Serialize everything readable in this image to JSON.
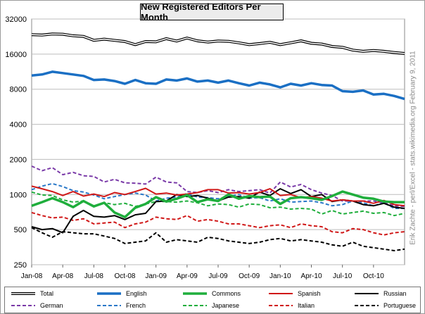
{
  "title": "New Registered Editors Per Month",
  "credit": "Erik Zachte - perl/Excel  -  stats.wikimedia.org        February 9, 2011",
  "chart_data": {
    "type": "line",
    "title": "New Registered Editors Per Month",
    "y_scale": "log",
    "ylim": [
      250,
      32000
    ],
    "y_ticks": [
      250,
      500,
      1000,
      2000,
      4000,
      8000,
      16000,
      32000
    ],
    "x_tick_labels": [
      "Jan-08",
      "Apr-08",
      "Jul-08",
      "Oct-08",
      "Jan-09",
      "Apr-09",
      "Jul-09",
      "Oct-09",
      "Jan-10",
      "Apr-10",
      "Jul-10",
      "Oct-10"
    ],
    "months": 37,
    "grid": "horizontal",
    "legend_position": "bottom",
    "series": [
      {
        "name": "Total",
        "color": "#000000",
        "style": "double",
        "values": [
          23500,
          23300,
          23800,
          23700,
          23000,
          22700,
          21000,
          21500,
          21000,
          20500,
          19300,
          20500,
          20400,
          21700,
          20700,
          22000,
          20800,
          20300,
          20700,
          20600,
          20000,
          19300,
          19700,
          20200,
          19300,
          20000,
          20800,
          19800,
          19500,
          18600,
          18300,
          17300,
          16900,
          17200,
          16900,
          16500,
          16200
        ]
      },
      {
        "name": "English",
        "color": "#1a6fc4",
        "style": "solid-thick",
        "values": [
          10500,
          10700,
          11300,
          11000,
          10700,
          10400,
          9600,
          9700,
          9400,
          8900,
          9600,
          9000,
          8900,
          9700,
          9500,
          9900,
          9300,
          9500,
          9100,
          9500,
          9000,
          8600,
          9100,
          8800,
          8300,
          8900,
          8600,
          9000,
          8700,
          8600,
          7700,
          7600,
          7800,
          7200,
          7300,
          7000,
          6600
        ]
      },
      {
        "name": "Commons",
        "color": "#1fae3c",
        "style": "solid-thick",
        "values": [
          800,
          860,
          930,
          860,
          780,
          880,
          790,
          850,
          700,
          640,
          770,
          830,
          950,
          870,
          920,
          990,
          860,
          910,
          880,
          1000,
          920,
          970,
          950,
          960,
          830,
          930,
          950,
          930,
          900,
          970,
          1060,
          1000,
          940,
          920,
          870,
          860,
          860
        ]
      },
      {
        "name": "Spanish",
        "color": "#d01818",
        "style": "solid",
        "values": [
          1180,
          1120,
          1060,
          980,
          1060,
          970,
          1010,
          960,
          1040,
          1000,
          1060,
          1130,
          1010,
          1030,
          990,
          1010,
          1040,
          1100,
          1100,
          1030,
          1040,
          1010,
          1040,
          1120,
          980,
          1000,
          940,
          960,
          930,
          880,
          900,
          880,
          880,
          840,
          890,
          820,
          800
        ]
      },
      {
        "name": "Russian",
        "color": "#000000",
        "style": "solid",
        "values": [
          530,
          500,
          510,
          470,
          650,
          730,
          650,
          640,
          660,
          610,
          670,
          690,
          870,
          880,
          1000,
          960,
          980,
          930,
          880,
          950,
          960,
          930,
          1050,
          980,
          1120,
          1020,
          1100,
          960,
          1000,
          870,
          900,
          880,
          820,
          800,
          840,
          780,
          760
        ]
      },
      {
        "name": "German",
        "color": "#7a3aa8",
        "style": "dashed",
        "values": [
          1750,
          1600,
          1700,
          1480,
          1550,
          1450,
          1430,
          1280,
          1350,
          1260,
          1250,
          1230,
          1410,
          1280,
          1260,
          1060,
          1040,
          1080,
          1040,
          1100,
          1060,
          1080,
          1100,
          1030,
          1280,
          1160,
          1220,
          1100,
          1030,
          980,
          880,
          880,
          880,
          880,
          850,
          800,
          790
        ]
      },
      {
        "name": "French",
        "color": "#2a78c8",
        "style": "dashed",
        "values": [
          1100,
          1180,
          1240,
          1170,
          1080,
          1050,
          990,
          920,
          960,
          1000,
          1030,
          990,
          880,
          930,
          950,
          1020,
          950,
          940,
          920,
          960,
          1000,
          930,
          940,
          880,
          920,
          860,
          870,
          880,
          850,
          800,
          820,
          880,
          850,
          800,
          850,
          760,
          760
        ]
      },
      {
        "name": "Japanese",
        "color": "#1fae3c",
        "style": "dashed",
        "values": [
          1050,
          990,
          980,
          900,
          860,
          880,
          800,
          850,
          820,
          840,
          790,
          830,
          870,
          870,
          860,
          880,
          850,
          800,
          830,
          820,
          780,
          830,
          820,
          770,
          780,
          750,
          760,
          750,
          680,
          730,
          680,
          700,
          720,
          690,
          700,
          660,
          690
        ]
      },
      {
        "name": "Italian",
        "color": "#d01818",
        "style": "dashed",
        "values": [
          700,
          660,
          630,
          640,
          600,
          620,
          560,
          570,
          580,
          520,
          560,
          580,
          640,
          620,
          610,
          660,
          590,
          610,
          590,
          560,
          560,
          540,
          520,
          540,
          550,
          520,
          560,
          540,
          530,
          480,
          470,
          510,
          500,
          470,
          450,
          470,
          480
        ]
      },
      {
        "name": "Portuguese",
        "color": "#000000",
        "style": "dashed",
        "values": [
          520,
          470,
          430,
          480,
          470,
          460,
          460,
          440,
          420,
          380,
          390,
          400,
          470,
          390,
          410,
          400,
          390,
          430,
          420,
          400,
          390,
          380,
          390,
          410,
          420,
          400,
          410,
          400,
          390,
          370,
          360,
          390,
          360,
          350,
          340,
          330,
          340
        ]
      }
    ]
  }
}
